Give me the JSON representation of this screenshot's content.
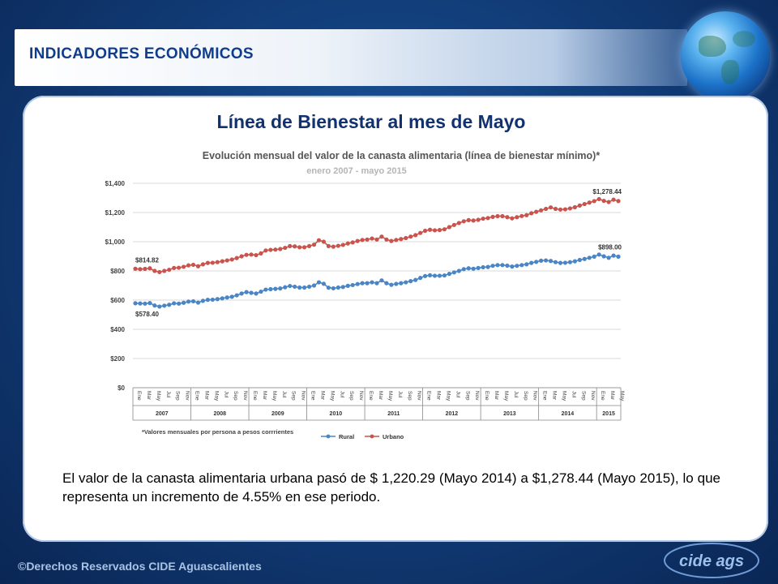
{
  "header": {
    "title": "INDICADORES ECONÓMICOS"
  },
  "slide": {
    "title": "Línea de Bienestar al mes de Mayo",
    "body": "El valor de la canasta alimentaria urbana pasó de $ 1,220.29 (Mayo 2014) a $1,278.44 (Mayo 2015), lo que representa un incremento de 4.55% en ese periodo."
  },
  "footer": {
    "copyright": "©Derechos Reservados CIDE Aguascalientes",
    "logo_text": "cide ags"
  },
  "colors": {
    "rural": "#4a86c5",
    "urbano": "#c9544d"
  },
  "chart_data": {
    "type": "line",
    "title": "Evolución mensual del valor de la canasta alimentaria (línea de bienestar mínimo)*",
    "subtitle": "enero 2007 - mayo 2015",
    "note": "*Valores mensuales por persona a pesos corrrientes",
    "ylim": [
      0,
      1400
    ],
    "yticks": [
      "$0",
      "$200",
      "$400",
      "$600",
      "$800",
      "$1,000",
      "$1,200",
      "$1,400"
    ],
    "month_labels": [
      "Ene",
      "Mar",
      "May",
      "Jul",
      "Sep",
      "Nov"
    ],
    "last_year_month_labels": [
      "Ene",
      "Mar",
      "May"
    ],
    "years": [
      "2007",
      "2008",
      "2009",
      "2010",
      "2011",
      "2012",
      "2013",
      "2014",
      "2015"
    ],
    "legend": {
      "position": "bottom",
      "entries": [
        "Rural",
        "Urbano"
      ]
    },
    "grid": true,
    "start_label": {
      "rural": "$578.40",
      "urbano": "$814.82"
    },
    "end_label": {
      "rural": "$898.00",
      "urbano": "$1,278.44"
    },
    "x": [
      "2007-01",
      "2007-02",
      "2007-03",
      "2007-04",
      "2007-05",
      "2007-06",
      "2007-07",
      "2007-08",
      "2007-09",
      "2007-10",
      "2007-11",
      "2007-12",
      "2008-01",
      "2008-02",
      "2008-03",
      "2008-04",
      "2008-05",
      "2008-06",
      "2008-07",
      "2008-08",
      "2008-09",
      "2008-10",
      "2008-11",
      "2008-12",
      "2009-01",
      "2009-02",
      "2009-03",
      "2009-04",
      "2009-05",
      "2009-06",
      "2009-07",
      "2009-08",
      "2009-09",
      "2009-10",
      "2009-11",
      "2009-12",
      "2010-01",
      "2010-02",
      "2010-03",
      "2010-04",
      "2010-05",
      "2010-06",
      "2010-07",
      "2010-08",
      "2010-09",
      "2010-10",
      "2010-11",
      "2010-12",
      "2011-01",
      "2011-02",
      "2011-03",
      "2011-04",
      "2011-05",
      "2011-06",
      "2011-07",
      "2011-08",
      "2011-09",
      "2011-10",
      "2011-11",
      "2011-12",
      "2012-01",
      "2012-02",
      "2012-03",
      "2012-04",
      "2012-05",
      "2012-06",
      "2012-07",
      "2012-08",
      "2012-09",
      "2012-10",
      "2012-11",
      "2012-12",
      "2013-01",
      "2013-02",
      "2013-03",
      "2013-04",
      "2013-05",
      "2013-06",
      "2013-07",
      "2013-08",
      "2013-09",
      "2013-10",
      "2013-11",
      "2013-12",
      "2014-01",
      "2014-02",
      "2014-03",
      "2014-04",
      "2014-05",
      "2014-06",
      "2014-07",
      "2014-08",
      "2014-09",
      "2014-10",
      "2014-11",
      "2014-12",
      "2015-01",
      "2015-02",
      "2015-03",
      "2015-04",
      "2015-05"
    ],
    "series": [
      {
        "name": "Rural",
        "values": [
          578.4,
          577.0,
          576.0,
          580.0,
          563.0,
          556.0,
          562.0,
          568.0,
          578.0,
          576.0,
          582.0,
          590.0,
          592.0,
          583.0,
          595.0,
          602.0,
          603.0,
          607.0,
          612.0,
          618.0,
          623.0,
          633.0,
          645.0,
          655.0,
          650.0,
          645.0,
          658.0,
          672.0,
          675.0,
          677.0,
          680.0,
          688.0,
          697.0,
          692.0,
          686.0,
          686.0,
          692.0,
          700.0,
          722.0,
          712.0,
          685.0,
          681.0,
          686.0,
          690.0,
          698.0,
          703.0,
          710.0,
          716.0,
          716.0,
          722.0,
          716.0,
          735.0,
          716.0,
          705.0,
          711.0,
          716.0,
          722.0,
          730.0,
          738.0,
          752.0,
          765.0,
          770.0,
          767.0,
          767.0,
          769.0,
          780.0,
          790.0,
          800.0,
          812.0,
          818.0,
          815.0,
          820.0,
          825.0,
          827.0,
          835.0,
          840.0,
          840.0,
          836.0,
          830.0,
          835.0,
          840.0,
          845.0,
          855.0,
          862.0,
          870.0,
          872.0,
          868.0,
          860.0,
          855.0,
          856.0,
          860.0,
          866.0,
          875.0,
          882.0,
          890.0,
          898.0,
          912.0,
          900.0,
          890.0,
          905.0,
          898.0
        ]
      },
      {
        "name": "Urbano",
        "values": [
          814.82,
          812.0,
          814.0,
          818.0,
          800.0,
          792.0,
          800.0,
          808.0,
          820.0,
          822.0,
          828.0,
          838.0,
          842.0,
          832.0,
          845.0,
          855.0,
          856.0,
          860.0,
          866.0,
          872.0,
          878.0,
          888.0,
          900.0,
          910.0,
          912.0,
          908.0,
          920.0,
          940.0,
          944.0,
          946.0,
          950.0,
          958.0,
          970.0,
          968.0,
          962.0,
          962.0,
          970.0,
          980.0,
          1010.0,
          1000.0,
          970.0,
          966.0,
          972.0,
          978.0,
          988.0,
          995.0,
          1005.0,
          1012.0,
          1015.0,
          1022.0,
          1015.0,
          1035.0,
          1015.0,
          1005.0,
          1012.0,
          1018.0,
          1025.0,
          1035.0,
          1045.0,
          1060.0,
          1075.0,
          1082.0,
          1078.0,
          1080.0,
          1085.0,
          1100.0,
          1115.0,
          1128.0,
          1140.0,
          1148.0,
          1145.0,
          1150.0,
          1158.0,
          1162.0,
          1170.0,
          1175.0,
          1175.0,
          1168.0,
          1160.0,
          1168.0,
          1176.0,
          1182.0,
          1195.0,
          1205.0,
          1215.0,
          1225.0,
          1235.0,
          1225.0,
          1220.29,
          1222.0,
          1228.0,
          1236.0,
          1248.0,
          1258.0,
          1268.0,
          1278.0,
          1292.0,
          1280.0,
          1272.0,
          1288.0,
          1278.44
        ]
      }
    ]
  }
}
